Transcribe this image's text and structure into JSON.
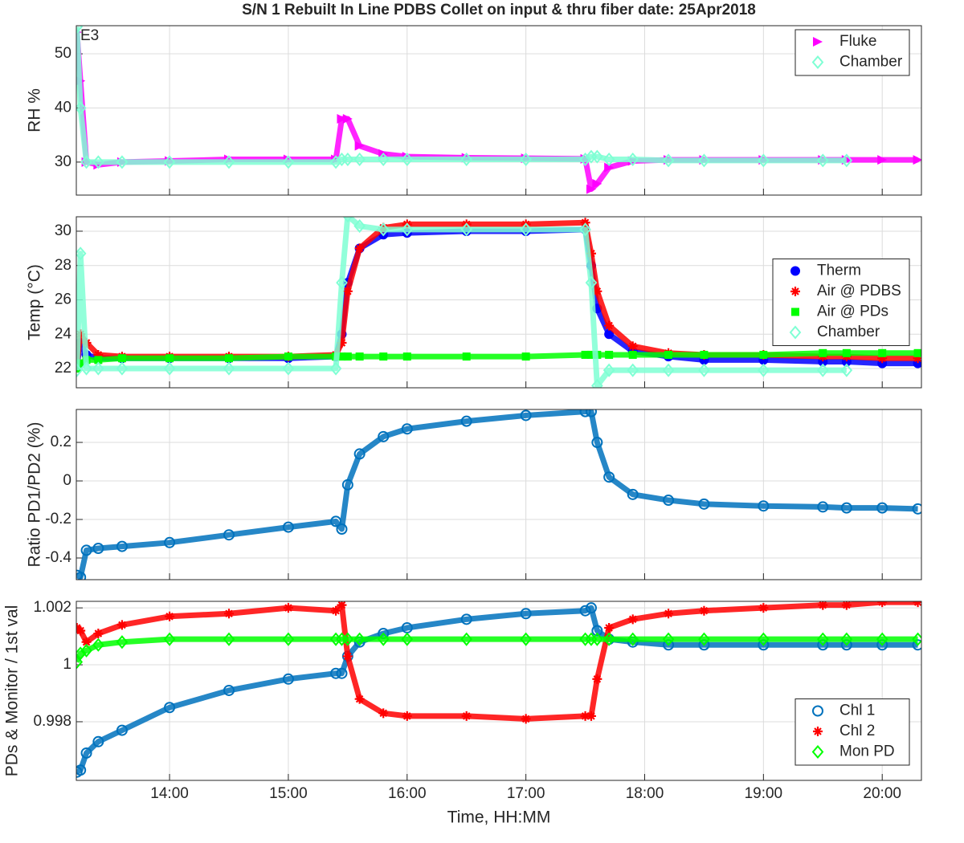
{
  "chart_data": [
    {
      "type": "line",
      "title": "S/N 1 Rebuilt In Line PDBS Collet on input & thru fiber date: 25Apr2018",
      "ylabel": "RH %",
      "annotation": "E3",
      "legend": "northeast",
      "grid": true,
      "x": [
        13.22,
        13.25,
        13.3,
        13.4,
        13.6,
        14,
        14.5,
        15,
        15.4,
        15.45,
        15.5,
        15.6,
        15.8,
        16,
        16.5,
        17,
        17.5,
        17.55,
        17.6,
        17.7,
        17.9,
        18.2,
        18.5,
        19,
        19.5,
        19.7,
        20,
        20.3
      ],
      "xlim": [
        13.215,
        20.33
      ],
      "xticks": [
        14,
        15,
        16,
        17,
        18,
        19,
        20
      ],
      "ylim": [
        23.9,
        55.2
      ],
      "yticks": [
        30,
        40,
        50
      ],
      "series": [
        {
          "name": "Fluke",
          "color": "#ff00ff",
          "marker": "triangle",
          "values": [
            54,
            45,
            30,
            29.5,
            30,
            30.2,
            30.5,
            30.5,
            30.5,
            38,
            38,
            33,
            31.5,
            31,
            30.8,
            30.7,
            30.6,
            25,
            26,
            29,
            30.2,
            30.4,
            30.4,
            30.4,
            30.4,
            30.4,
            30.4,
            30.4
          ]
        },
        {
          "name": "Chamber",
          "color": "#7fffd4",
          "marker": "diamond",
          "values": [
            55,
            40,
            30,
            30,
            30,
            30,
            30,
            30,
            30,
            30.5,
            30.5,
            30.5,
            30.5,
            30.5,
            30.5,
            30.5,
            30.5,
            31,
            31,
            30.5,
            30.5,
            30.3,
            30.3,
            30.3,
            30.3,
            30.3,
            null,
            null
          ]
        }
      ]
    },
    {
      "type": "line",
      "ylabel": "Temp (°C)",
      "legend": "east",
      "grid": true,
      "x": [
        13.22,
        13.25,
        13.3,
        13.4,
        13.6,
        14,
        14.5,
        15,
        15.4,
        15.45,
        15.5,
        15.6,
        15.8,
        16,
        16.5,
        17,
        17.5,
        17.55,
        17.6,
        17.7,
        17.9,
        18.2,
        18.5,
        19,
        19.5,
        19.7,
        20,
        20.3
      ],
      "xlim": [
        13.215,
        20.33
      ],
      "xticks": [
        14,
        15,
        16,
        17,
        18,
        19,
        20
      ],
      "ylim": [
        20.88,
        30.84
      ],
      "yticks": [
        22,
        24,
        26,
        28,
        30
      ],
      "series": [
        {
          "name": "Therm",
          "color": "#0000ff",
          "marker": "dot",
          "values": [
            22.2,
            23.5,
            22.8,
            22.6,
            22.6,
            22.6,
            22.6,
            22.6,
            22.7,
            24,
            27,
            29,
            29.8,
            29.9,
            30,
            30,
            30.1,
            28,
            25.5,
            24,
            23,
            22.7,
            22.5,
            22.5,
            22.4,
            22.4,
            22.3,
            22.3
          ]
        },
        {
          "name": "Air @ PDBS",
          "color": "#ff0000",
          "marker": "star",
          "values": [
            22.3,
            24,
            23.5,
            22.8,
            22.7,
            22.7,
            22.7,
            22.7,
            22.8,
            23.5,
            26.5,
            29,
            30.2,
            30.4,
            30.4,
            30.4,
            30.5,
            28.7,
            26.5,
            24.5,
            23.3,
            22.9,
            22.8,
            22.8,
            22.7,
            22.7,
            22.6,
            22.6
          ]
        },
        {
          "name": "Air @ PDs",
          "color": "#00ff00",
          "marker": "square",
          "values": [
            22,
            22.3,
            22.5,
            22.5,
            22.6,
            22.6,
            22.6,
            22.7,
            22.7,
            22.7,
            22.7,
            22.7,
            22.7,
            22.7,
            22.7,
            22.7,
            22.8,
            22.8,
            22.8,
            22.8,
            22.8,
            22.8,
            22.8,
            22.8,
            22.9,
            22.9,
            22.9,
            22.9
          ]
        },
        {
          "name": "Chamber",
          "color": "#7fffd4",
          "marker": "diamond",
          "values": [
            21.9,
            28.7,
            22,
            22,
            22,
            22,
            22,
            22,
            22,
            27,
            30.9,
            30.3,
            30.1,
            30.1,
            30.1,
            30.1,
            30.1,
            27,
            21,
            21.9,
            21.9,
            21.9,
            21.9,
            21.9,
            21.9,
            21.9,
            null,
            null
          ]
        }
      ]
    },
    {
      "type": "line",
      "ylabel": "Ratio PD1/PD2 (%)",
      "grid": true,
      "x": [
        13.22,
        13.25,
        13.3,
        13.4,
        13.6,
        14,
        14.5,
        15,
        15.4,
        15.45,
        15.5,
        15.6,
        15.8,
        16,
        16.5,
        17,
        17.5,
        17.55,
        17.6,
        17.7,
        17.9,
        18.2,
        18.5,
        19,
        19.5,
        19.7,
        20,
        20.3
      ],
      "xlim": [
        13.215,
        20.33
      ],
      "xticks": [
        14,
        15,
        16,
        17,
        18,
        19,
        20
      ],
      "ylim": [
        -0.5125,
        0.371
      ],
      "yticks": [
        -0.4,
        -0.2,
        0,
        0.2
      ],
      "color": "#0072bd",
      "marker": "circle",
      "values": [
        -0.49,
        -0.5,
        -0.36,
        -0.35,
        -0.34,
        -0.32,
        -0.28,
        -0.24,
        -0.21,
        -0.25,
        -0.02,
        0.14,
        0.23,
        0.27,
        0.31,
        0.34,
        0.36,
        0.36,
        0.2,
        0.02,
        -0.07,
        -0.1,
        -0.12,
        -0.13,
        -0.135,
        -0.14,
        -0.14,
        -0.145
      ]
    },
    {
      "type": "line",
      "ylabel": "PDs & Monitor / 1st val",
      "xlabel": "Time, HH:MM",
      "legend": "southeast",
      "grid": true,
      "x": [
        13.22,
        13.25,
        13.3,
        13.4,
        13.6,
        14,
        14.5,
        15,
        15.4,
        15.45,
        15.5,
        15.6,
        15.8,
        16,
        16.5,
        17,
        17.5,
        17.55,
        17.6,
        17.7,
        17.9,
        18.2,
        18.5,
        19,
        19.5,
        19.7,
        20,
        20.3
      ],
      "xlim": [
        13.215,
        20.33
      ],
      "xticks": [
        {
          "value": 14,
          "label": "14:00"
        },
        {
          "value": 15,
          "label": "15:00"
        },
        {
          "value": 16,
          "label": "16:00"
        },
        {
          "value": 17,
          "label": "17:00"
        },
        {
          "value": 18,
          "label": "18:00"
        },
        {
          "value": 19,
          "label": "19:00"
        },
        {
          "value": 20,
          "label": "20:00"
        }
      ],
      "ylim": [
        0.99594,
        1.00223
      ],
      "yticks": [
        0.998,
        1,
        1.002
      ],
      "series": [
        {
          "name": "Chl 1",
          "color": "#0072bd",
          "marker": "circle",
          "values": [
            0.99623,
            0.9963,
            0.9969,
            0.9973,
            0.9977,
            0.9985,
            0.9991,
            0.9995,
            0.9997,
            0.9997,
            1.0003,
            1.0008,
            1.0011,
            1.0013,
            1.0016,
            1.0018,
            1.0019,
            1.002,
            1.0012,
            1.0009,
            1.0008,
            1.0007,
            1.0007,
            1.0007,
            1.0007,
            1.0007,
            1.0007,
            1.0007
          ]
        },
        {
          "name": "Chl 2",
          "color": "#ff0000",
          "marker": "star",
          "values": [
            1.0013,
            1.0012,
            1.0008,
            1.0011,
            1.0014,
            1.0017,
            1.0018,
            1.002,
            1.0019,
            1.0021,
            1.0003,
            0.9988,
            0.9983,
            0.9982,
            0.9982,
            0.9981,
            0.9982,
            0.9982,
            0.9995,
            1.0013,
            1.0016,
            1.0018,
            1.0019,
            1.002,
            1.0021,
            1.0021,
            1.0022,
            1.0022
          ]
        },
        {
          "name": "Mon PD",
          "color": "#00ff00",
          "marker": "diamond",
          "values": [
            1.0001,
            1.0004,
            1.0005,
            1.0007,
            1.0008,
            1.0009,
            1.0009,
            1.0009,
            1.0009,
            1.0009,
            1.0009,
            1.0009,
            1.0009,
            1.0009,
            1.0009,
            1.0009,
            1.0009,
            1.0009,
            1.0009,
            1.0009,
            1.0009,
            1.0009,
            1.0009,
            1.0009,
            1.0009,
            1.0009,
            1.0009,
            1.0009
          ]
        }
      ]
    }
  ]
}
